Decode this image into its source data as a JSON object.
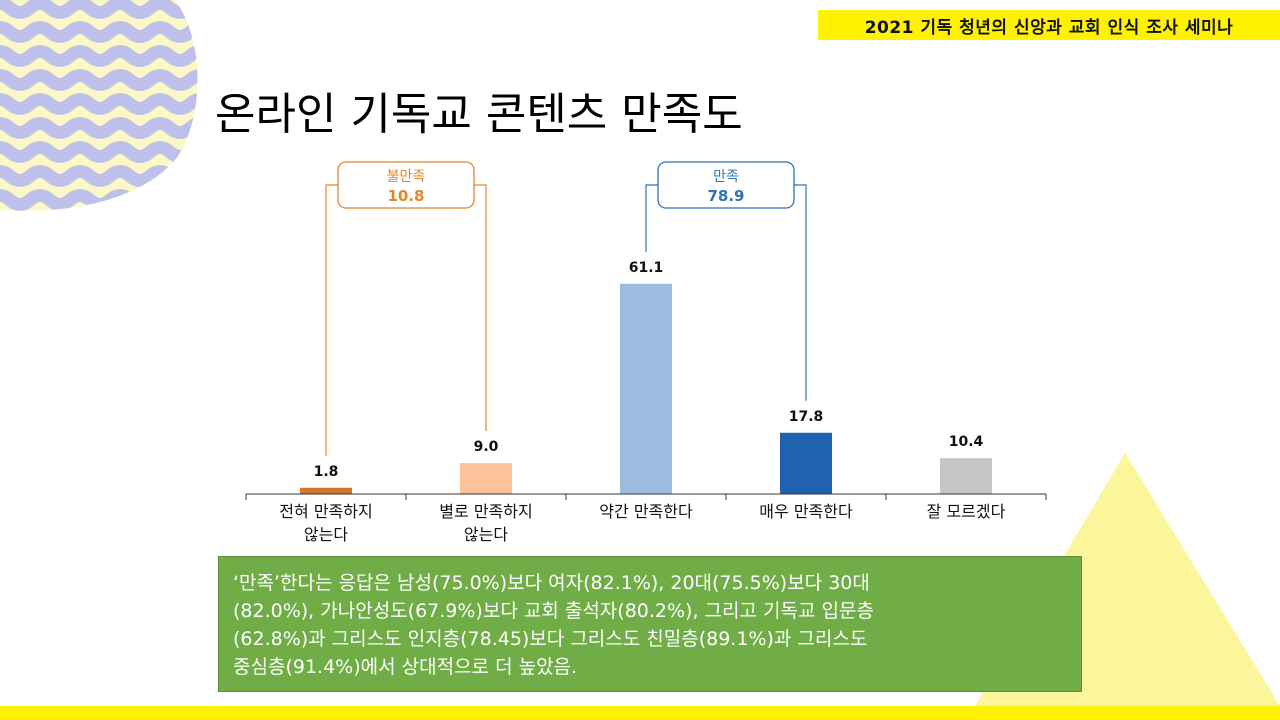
{
  "banner": {
    "text": "2021 기독 청년의 신앙과 교회 인식 조사 세미나"
  },
  "slide": {
    "title": "온라인 기독교 콘텐츠 만족도"
  },
  "colors": {
    "banner": "#fff200",
    "dissatisfied": "#e3852e",
    "satisfied": "#2e74b5",
    "summary_bg": "#70ad47"
  },
  "chart_data": {
    "type": "bar",
    "categories": [
      [
        "전혀 만족하지",
        "않는다"
      ],
      [
        "별로 만족하지",
        "않는다"
      ],
      [
        "약간 만족한다"
      ],
      [
        "매우 만족한다"
      ],
      [
        "잘 모르겠다"
      ]
    ],
    "values": [
      1.8,
      9.0,
      61.1,
      17.8,
      10.4
    ],
    "value_labels": [
      "1.8",
      "9.0",
      "61.1",
      "17.8",
      "10.4"
    ],
    "bar_colors": [
      "#d9742b",
      "#fcc39a",
      "#9dbadf",
      "#1f62b0",
      "#c6c6c6"
    ],
    "ylim": [
      0,
      70
    ],
    "title": "",
    "xlabel": "",
    "ylabel": "",
    "grid": false,
    "groups": [
      {
        "label": "불만족",
        "value": "10.8",
        "members": [
          0,
          1
        ],
        "color": "#e3852e"
      },
      {
        "label": "만족",
        "value": "78.9",
        "members": [
          2,
          3
        ],
        "color": "#2e74b5"
      }
    ]
  },
  "summary": {
    "lines": [
      "‘만족’한다는 응답은 남성(75.0%)보다 여자(82.1%), 20대(75.5%)보다 30대",
      "(82.0%), 가나안성도(67.9%)보다 교회 출석자(80.2%), 그리고 기독교 입문층",
      "(62.8%)과 그리스도 인지층(78.45)보다 그리스도 친밀층(89.1%)과 그리스도",
      "중심층(91.4%)에서 상대적으로 더 높았음."
    ]
  }
}
